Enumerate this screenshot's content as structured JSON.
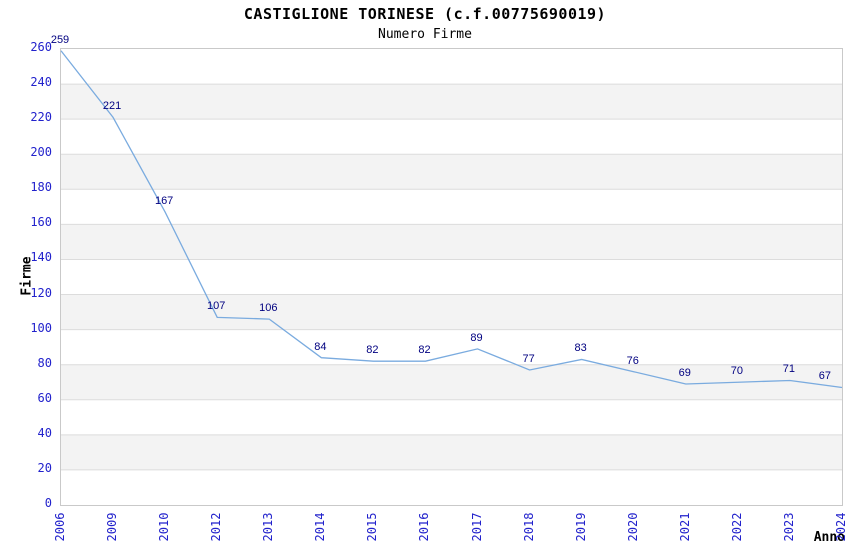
{
  "title": "CASTIGLIONE TORINESE (c.f.00775690019)",
  "subtitle": "Numero Firme",
  "chart_data": {
    "type": "line",
    "title": "CASTIGLIONE TORINESE (c.f.00775690019)",
    "subtitle": "Numero Firme",
    "xlabel": "Anno",
    "ylabel": "Firme",
    "categories": [
      "2006",
      "2009",
      "2010",
      "2012",
      "2013",
      "2014",
      "2015",
      "2016",
      "2017",
      "2018",
      "2019",
      "2020",
      "2021",
      "2022",
      "2023",
      "2024"
    ],
    "values": [
      259,
      221,
      167,
      107,
      106,
      84,
      82,
      82,
      89,
      77,
      83,
      76,
      69,
      70,
      71,
      67
    ],
    "ylim": [
      0,
      260
    ],
    "ytick_step": 20,
    "grid": "horizontal-bands",
    "legend": "none",
    "point_labels_visible": true,
    "colors": {
      "line": "#7aabdf",
      "tick_label": "#2222cc",
      "point_label": "#000080",
      "band_gray": "#f3f3f3",
      "band_white": "#ffffff",
      "grid_line": "#dcdcdc",
      "plot_border": "#c9c9c9",
      "title_text": "#000000",
      "axis_title_text": "#000000"
    }
  }
}
